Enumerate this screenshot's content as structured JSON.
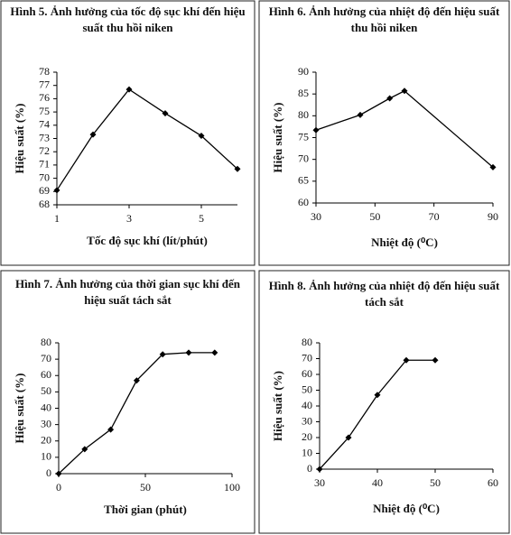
{
  "chart_data": [
    {
      "type": "line",
      "title": "Hình 5. Ảnh hưởng của tốc độ sục khí đến hiệu suất thu hồi niken",
      "xlabel": "Tốc độ sục khí (lít/phút)",
      "ylabel": "Hiệu suất (%)",
      "x": [
        1,
        2,
        3,
        4,
        5,
        6
      ],
      "values": [
        69.1,
        73.3,
        76.7,
        74.9,
        73.2,
        70.7
      ],
      "xlim": [
        1,
        6
      ],
      "xticks": [
        1,
        3,
        5
      ],
      "ylim": [
        68,
        78
      ],
      "yticks": [
        68,
        69,
        70,
        71,
        72,
        73,
        74,
        75,
        76,
        77,
        78
      ],
      "color": "#000000",
      "grid": false
    },
    {
      "type": "line",
      "title": "Hình 6. Ảnh hưởng của nhiệt độ đến hiệu suất thu hồi niken",
      "xlabel": "Nhiệt độ (⁰C)",
      "ylabel": "Hiệu suất (%)",
      "x": [
        30,
        45,
        55,
        60,
        90
      ],
      "values": [
        76.7,
        80.2,
        84,
        85.7,
        68.2
      ],
      "xlim": [
        30,
        90
      ],
      "xticks": [
        30,
        50,
        70,
        90
      ],
      "ylim": [
        60,
        90
      ],
      "yticks": [
        60,
        65,
        70,
        75,
        80,
        85,
        90
      ],
      "color": "#000000",
      "grid": false
    },
    {
      "type": "line",
      "title": "Hình 7. Ảnh hưởng của thời gian sục khí đến hiệu suất tách sắt",
      "xlabel": "Thời gian (phút)",
      "ylabel": "Hiệu suất (%)",
      "x": [
        0,
        15,
        30,
        45,
        60,
        75,
        90
      ],
      "values": [
        0,
        15,
        27,
        57,
        73,
        74,
        74
      ],
      "xlim": [
        0,
        100
      ],
      "xticks": [
        0,
        50,
        100
      ],
      "ylim": [
        0,
        80
      ],
      "yticks": [
        0,
        10,
        20,
        30,
        40,
        50,
        60,
        70,
        80
      ],
      "color": "#000000",
      "grid": false
    },
    {
      "type": "line",
      "title": "Hình 8. Ảnh hưởng của nhiệt độ đến hiệu suất tách sắt",
      "xlabel": "Nhiệt độ (⁰C)",
      "ylabel": "Hiệu suất (%)",
      "x": [
        30,
        35,
        40,
        45,
        50
      ],
      "values": [
        0,
        20,
        47,
        69,
        69
      ],
      "xlim": [
        30,
        60
      ],
      "xticks": [
        30,
        40,
        50,
        60
      ],
      "ylim": [
        0,
        80
      ],
      "yticks": [
        0,
        10,
        20,
        30,
        40,
        50,
        60,
        70,
        80
      ],
      "color": "#000000",
      "grid": false
    }
  ]
}
